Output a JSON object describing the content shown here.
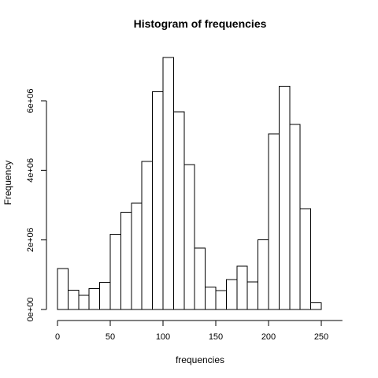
{
  "chart_data": {
    "type": "bar",
    "title": "Histogram of frequencies",
    "xlabel": "frequencies",
    "ylabel": "Frequency",
    "xlim": [
      0,
      270
    ],
    "ylim": [
      0,
      7200000
    ],
    "bin_width": 10,
    "bins": [
      {
        "x0": 0,
        "x1": 10,
        "count": 1180000
      },
      {
        "x0": 10,
        "x1": 20,
        "count": 560000
      },
      {
        "x0": 20,
        "x1": 30,
        "count": 410000
      },
      {
        "x0": 30,
        "x1": 40,
        "count": 600000
      },
      {
        "x0": 40,
        "x1": 50,
        "count": 780000
      },
      {
        "x0": 50,
        "x1": 60,
        "count": 2160000
      },
      {
        "x0": 60,
        "x1": 70,
        "count": 2800000
      },
      {
        "x0": 70,
        "x1": 80,
        "count": 3060000
      },
      {
        "x0": 80,
        "x1": 90,
        "count": 4260000
      },
      {
        "x0": 90,
        "x1": 100,
        "count": 6260000
      },
      {
        "x0": 100,
        "x1": 110,
        "count": 7250000
      },
      {
        "x0": 110,
        "x1": 120,
        "count": 5680000
      },
      {
        "x0": 120,
        "x1": 130,
        "count": 4170000
      },
      {
        "x0": 130,
        "x1": 140,
        "count": 1770000
      },
      {
        "x0": 140,
        "x1": 150,
        "count": 650000
      },
      {
        "x0": 150,
        "x1": 160,
        "count": 540000
      },
      {
        "x0": 160,
        "x1": 170,
        "count": 860000
      },
      {
        "x0": 170,
        "x1": 180,
        "count": 1240000
      },
      {
        "x0": 180,
        "x1": 190,
        "count": 790000
      },
      {
        "x0": 190,
        "x1": 200,
        "count": 2000000
      },
      {
        "x0": 200,
        "x1": 210,
        "count": 5050000
      },
      {
        "x0": 210,
        "x1": 220,
        "count": 6420000
      },
      {
        "x0": 220,
        "x1": 230,
        "count": 5320000
      },
      {
        "x0": 230,
        "x1": 240,
        "count": 2900000
      },
      {
        "x0": 240,
        "x1": 250,
        "count": 190000
      }
    ],
    "x_ticks": [
      0,
      50,
      100,
      150,
      200,
      250
    ],
    "x_tick_labels": [
      "0",
      "50",
      "100",
      "150",
      "200",
      "250"
    ],
    "y_ticks": [
      0,
      2000000,
      4000000,
      6000000
    ],
    "y_tick_labels": [
      "0e+00",
      "2e+06",
      "4e+06",
      "6e+06"
    ],
    "grid": false,
    "legend": "none",
    "colors": {
      "bar_fill": "#ffffff",
      "bar_stroke": "#000000",
      "axis": "#000000"
    }
  }
}
